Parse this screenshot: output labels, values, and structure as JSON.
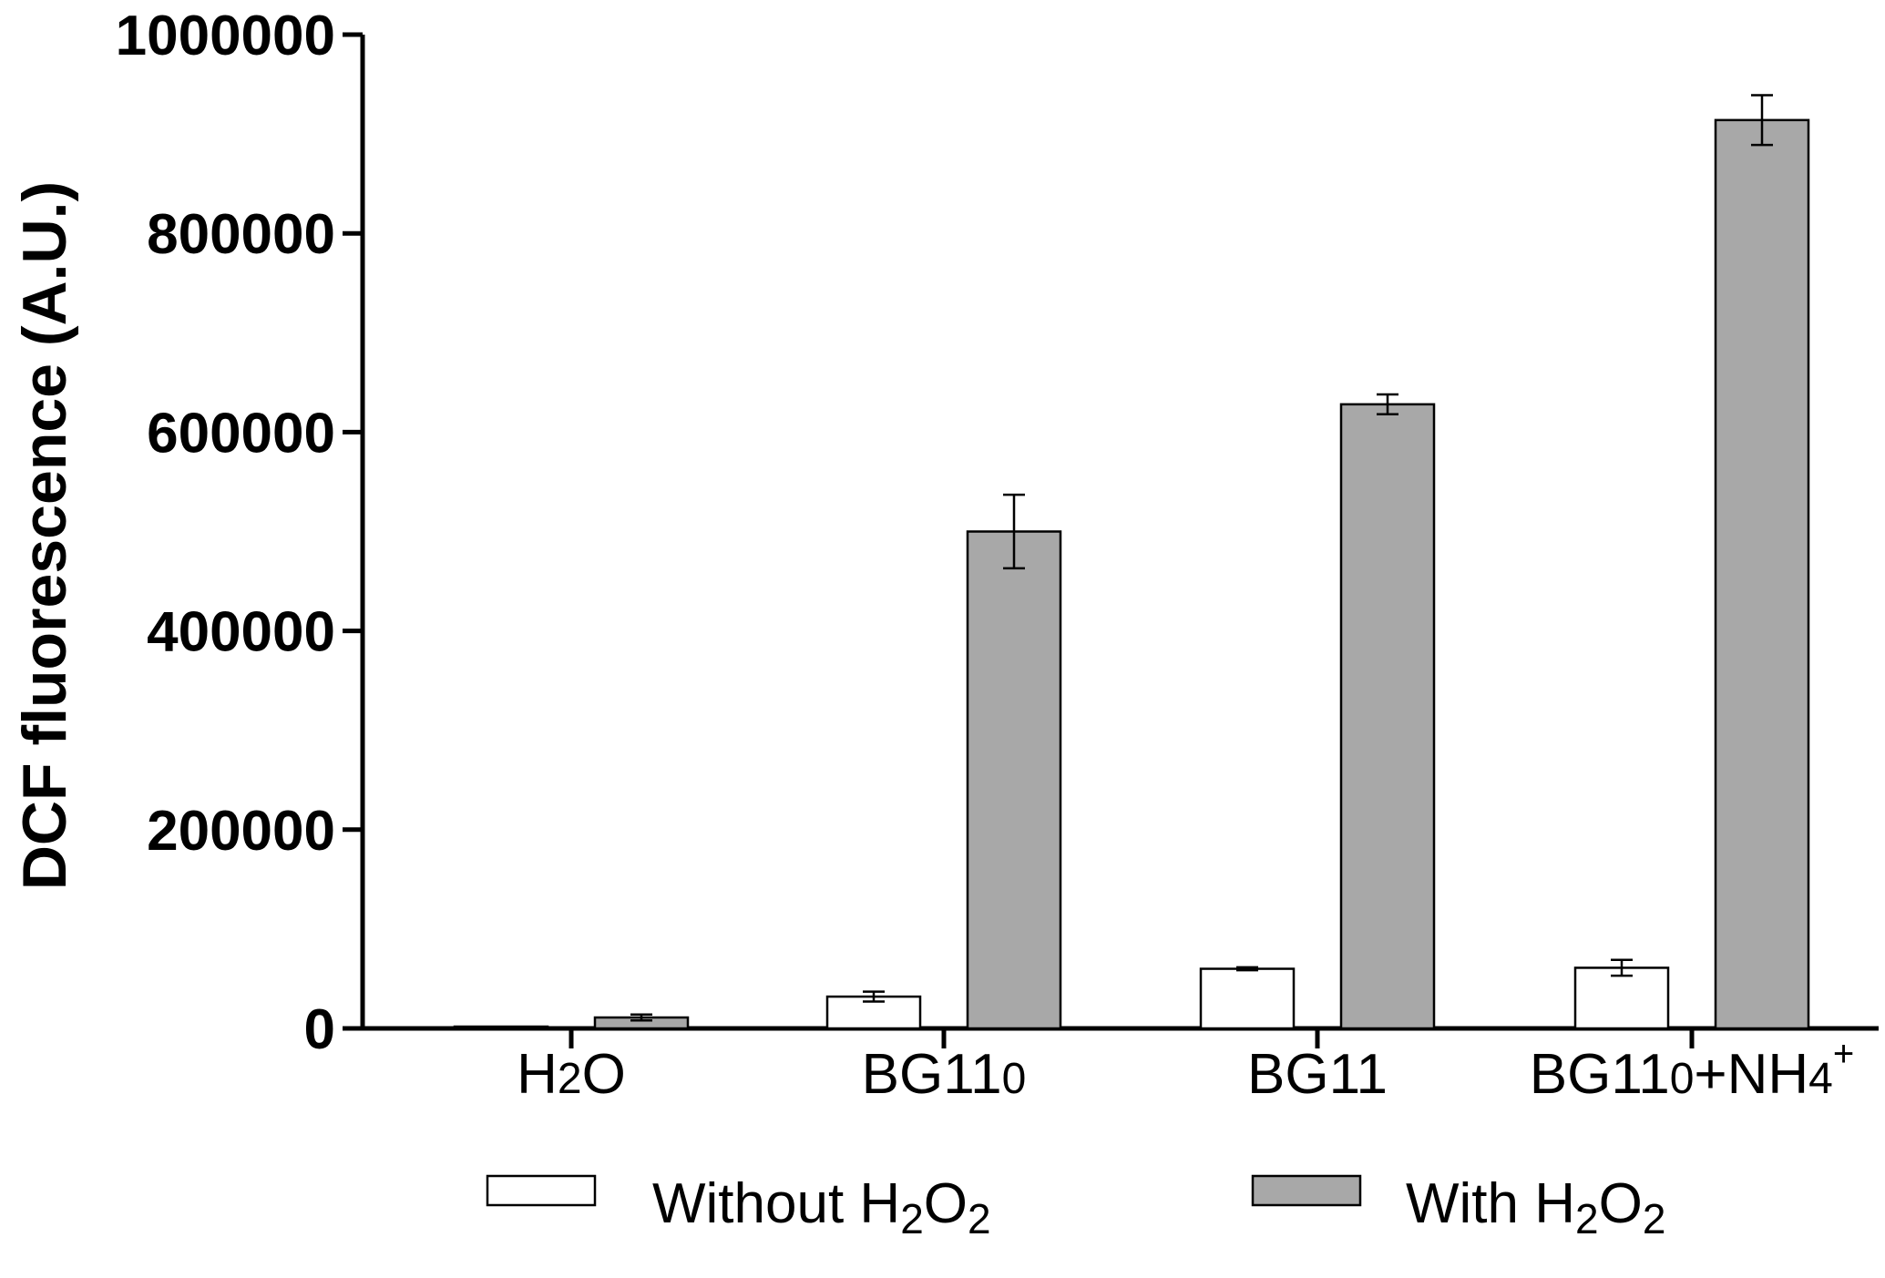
{
  "chart_data": {
    "type": "bar",
    "ylabel": "DCF fluorescence (A.U.)",
    "xlabel": "",
    "ylim": [
      0,
      1000000
    ],
    "yticks": [
      "0",
      "200000",
      "400000",
      "600000",
      "800000",
      "1000000"
    ],
    "categories": [
      {
        "base": "H",
        "sub": "2",
        "rest": "O",
        "sup": ""
      },
      {
        "base": "BG11",
        "sub": "0",
        "rest": "",
        "sup": ""
      },
      {
        "base": "BG11",
        "sub": "",
        "rest": "",
        "sup": ""
      },
      {
        "base": "BG11",
        "sub": "0",
        "rest": "+NH",
        "sub2": "4",
        "sup": "+"
      }
    ],
    "series": [
      {
        "name": "Without H2O2",
        "legend": {
          "text": "Without H",
          "sub1": "2",
          "mid": "O",
          "sub2": "2"
        },
        "color": "#ffffff",
        "values": [
          1000,
          32000,
          60000,
          61000
        ],
        "errors": [
          500,
          5000,
          1500,
          8000
        ]
      },
      {
        "name": "With H2O2",
        "legend": {
          "text": "With H",
          "sub1": "2",
          "mid": "O",
          "sub2": "2"
        },
        "color": "#a8a8a8",
        "values": [
          11000,
          500000,
          628000,
          914000
        ],
        "errors": [
          3000,
          37000,
          10000,
          25000
        ]
      }
    ],
    "legend_position": "bottom",
    "grid": false
  }
}
